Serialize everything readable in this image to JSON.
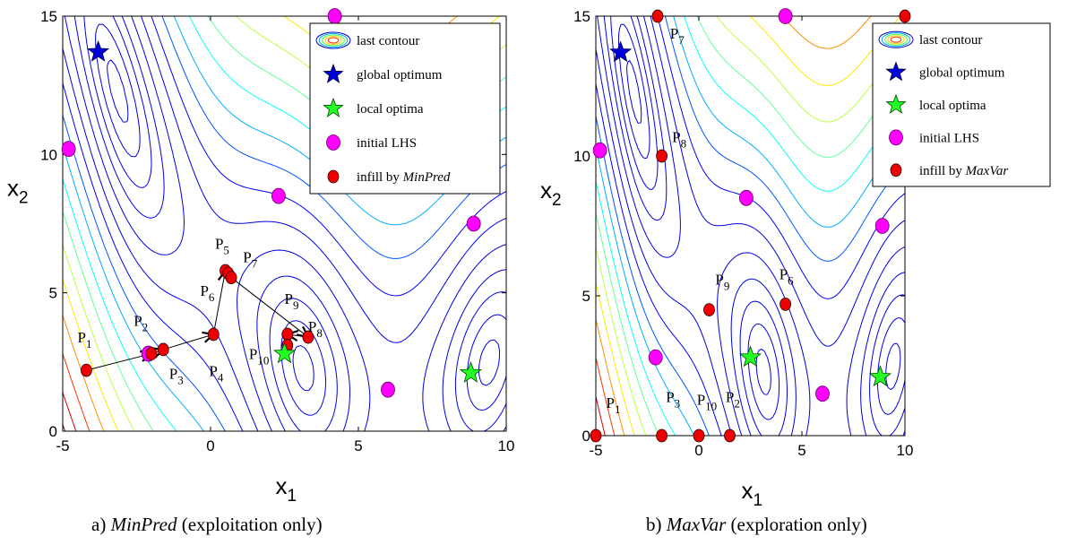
{
  "chart_data": [
    {
      "type": "scatter",
      "panel": "a",
      "caption_index": "a)",
      "caption_italic": "MinPred",
      "caption_rest": " (exploitation only)",
      "xlabel": "x",
      "xlabel_sub": "1",
      "ylabel": "x",
      "ylabel_sub": "2",
      "xlim": [
        -5,
        10
      ],
      "ylim": [
        0,
        15
      ],
      "xticks": [
        -5,
        0,
        5,
        10
      ],
      "yticks": [
        0,
        5,
        10,
        15
      ],
      "contours": "Branin function contour lines (blue to red)",
      "legend": {
        "placement": "top-right",
        "items": [
          {
            "marker": "contour",
            "label": "last contour",
            "label_italic": ""
          },
          {
            "marker": "blue-star",
            "label": "global optimum",
            "label_italic": ""
          },
          {
            "marker": "green-star",
            "label": "local optima",
            "label_italic": ""
          },
          {
            "marker": "magenta-circle",
            "label": "initial LHS",
            "label_italic": ""
          },
          {
            "marker": "red-circle",
            "label": "infill by ",
            "label_italic": "MinPred"
          }
        ]
      },
      "global_optimum": [
        {
          "x": -3.8,
          "y": 13.7
        }
      ],
      "local_optima": [
        {
          "x": 2.5,
          "y": 2.8
        },
        {
          "x": 8.8,
          "y": 2.1
        }
      ],
      "initial_lhs": [
        {
          "x": -4.8,
          "y": 10.2
        },
        {
          "x": 4.2,
          "y": 15.0
        },
        {
          "x": 2.3,
          "y": 8.5
        },
        {
          "x": 8.9,
          "y": 7.5
        },
        {
          "x": -2.1,
          "y": 2.8
        },
        {
          "x": 6.0,
          "y": 1.5
        }
      ],
      "infill": [
        {
          "label": "P",
          "sub": "1",
          "x": -4.2,
          "y": 2.2
        },
        {
          "label": "P",
          "sub": "2",
          "x": -2.0,
          "y": 2.8
        },
        {
          "label": "P",
          "sub": "3",
          "x": -1.6,
          "y": 2.95
        },
        {
          "label": "P",
          "sub": "4",
          "x": 0.1,
          "y": 3.5
        },
        {
          "label": "P",
          "sub": "5",
          "x": 0.5,
          "y": 5.8
        },
        {
          "label": "P",
          "sub": "6",
          "x": 0.6,
          "y": 5.7
        },
        {
          "label": "P",
          "sub": "7",
          "x": 0.7,
          "y": 5.55
        },
        {
          "label": "P",
          "sub": "8",
          "x": 3.3,
          "y": 3.4
        },
        {
          "label": "P",
          "sub": "9",
          "x": 2.6,
          "y": 3.5
        },
        {
          "label": "P",
          "sub": "10",
          "x": 2.6,
          "y": 3.1
        }
      ],
      "arrows": [
        [
          -4.2,
          2.2,
          -2.0,
          2.8
        ],
        [
          -2.0,
          2.8,
          -1.6,
          2.95
        ],
        [
          -1.6,
          2.95,
          0.1,
          3.5
        ],
        [
          0.1,
          3.5,
          0.5,
          5.8
        ],
        [
          0.7,
          5.55,
          3.3,
          3.4
        ],
        [
          3.3,
          3.4,
          2.6,
          3.5
        ]
      ],
      "point_labels": [
        {
          "text": "P",
          "sub": "1",
          "x": -4.5,
          "y": 3.2
        },
        {
          "text": "P",
          "sub": "2",
          "x": -2.6,
          "y": 3.8
        },
        {
          "text": "P",
          "sub": "3",
          "x": -1.4,
          "y": 1.9
        },
        {
          "text": "P",
          "sub": "4",
          "x": -0.05,
          "y": 2.0
        },
        {
          "text": "P",
          "sub": "5",
          "x": 0.15,
          "y": 6.6
        },
        {
          "text": "P",
          "sub": "6",
          "x": -0.35,
          "y": 4.9
        },
        {
          "text": "P",
          "sub": "7",
          "x": 1.1,
          "y": 6.1
        },
        {
          "text": "P",
          "sub": "8",
          "x": 3.3,
          "y": 3.6
        },
        {
          "text": "P",
          "sub": "9",
          "x": 2.5,
          "y": 4.6
        },
        {
          "text": "P",
          "sub": "10",
          "x": 1.3,
          "y": 2.6
        }
      ]
    },
    {
      "type": "scatter",
      "panel": "b",
      "caption_index": "b)",
      "caption_italic": "MaxVar",
      "caption_rest": " (exploration only)",
      "xlabel": "x",
      "xlabel_sub": "1",
      "ylabel": "x",
      "ylabel_sub": "2",
      "xlim": [
        -5,
        10
      ],
      "ylim": [
        0,
        15
      ],
      "xticks": [
        -5,
        0,
        5,
        10
      ],
      "yticks": [
        0,
        5,
        10,
        15
      ],
      "contours": "Branin function contour lines (blue to red)",
      "legend": {
        "placement": "top-right",
        "items": [
          {
            "marker": "contour",
            "label": "last contour",
            "label_italic": ""
          },
          {
            "marker": "blue-star",
            "label": "global optimum",
            "label_italic": ""
          },
          {
            "marker": "green-star",
            "label": "local optima",
            "label_italic": ""
          },
          {
            "marker": "magenta-circle",
            "label": "initial LHS",
            "label_italic": ""
          },
          {
            "marker": "red-circle",
            "label": "infill by ",
            "label_italic": "MaxVar"
          }
        ]
      },
      "global_optimum": [
        {
          "x": -3.8,
          "y": 13.7
        }
      ],
      "local_optima": [
        {
          "x": 2.5,
          "y": 2.8
        },
        {
          "x": 8.8,
          "y": 2.1
        }
      ],
      "initial_lhs": [
        {
          "x": -4.8,
          "y": 10.2
        },
        {
          "x": 4.2,
          "y": 15.0
        },
        {
          "x": 2.3,
          "y": 8.5
        },
        {
          "x": 8.9,
          "y": 7.5
        },
        {
          "x": -2.1,
          "y": 2.8
        },
        {
          "x": 6.0,
          "y": 1.5
        }
      ],
      "infill": [
        {
          "label": "P",
          "sub": "1",
          "x": -5.0,
          "y": 0.0
        },
        {
          "label": "P",
          "sub": "2",
          "x": 1.5,
          "y": 0.0
        },
        {
          "label": "P",
          "sub": "3",
          "x": -1.8,
          "y": 0.0
        },
        {
          "label": "P",
          "sub": "6",
          "x": 4.2,
          "y": 4.7
        },
        {
          "label": "P",
          "sub": "7",
          "x": -2.0,
          "y": 15.0
        },
        {
          "label": "P",
          "sub": "8",
          "x": -1.8,
          "y": 10.0
        },
        {
          "label": "P",
          "sub": "9",
          "x": 0.5,
          "y": 4.5
        },
        {
          "label": "P",
          "sub": "10",
          "x": 0.0,
          "y": 0.0
        },
        {
          "label": "",
          "sub": "",
          "x": 10.0,
          "y": 15.0
        }
      ],
      "point_labels": [
        {
          "text": "P",
          "sub": "1",
          "x": -4.5,
          "y": 1.0
        },
        {
          "text": "P",
          "sub": "2",
          "x": 1.3,
          "y": 1.2
        },
        {
          "text": "P",
          "sub": "3",
          "x": -1.6,
          "y": 1.2
        },
        {
          "text": "P",
          "sub": "6",
          "x": 3.9,
          "y": 5.6
        },
        {
          "text": "P",
          "sub": "7",
          "x": -1.4,
          "y": 14.2
        },
        {
          "text": "P",
          "sub": "8",
          "x": -1.3,
          "y": 10.5
        },
        {
          "text": "P",
          "sub": "9",
          "x": 0.8,
          "y": 5.4
        },
        {
          "text": "P",
          "sub": "10",
          "x": -0.1,
          "y": 1.1
        }
      ]
    }
  ]
}
